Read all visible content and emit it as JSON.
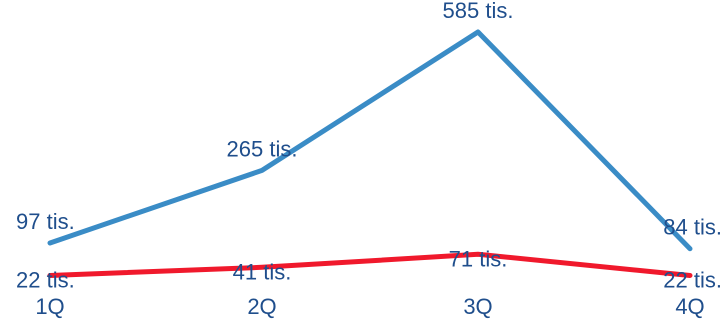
{
  "chart_data": {
    "type": "line",
    "categories": [
      "1Q",
      "2Q",
      "3Q",
      "4Q"
    ],
    "series": [
      {
        "values": [
          97,
          265,
          585,
          84
        ],
        "labels": [
          "97 tis.",
          "265 tis.",
          "585 tis.",
          "84 tis."
        ],
        "color": "#3a8cc6"
      },
      {
        "values": [
          22,
          41,
          71,
          22
        ],
        "labels": [
          "22 tis.",
          "41 tis.",
          "71 tis.",
          "22 tis."
        ],
        "color": "#f0192c"
      }
    ],
    "ylim": [
      0,
      585
    ],
    "grid": false,
    "legend": "none",
    "label_color": "#1f4e8c"
  }
}
